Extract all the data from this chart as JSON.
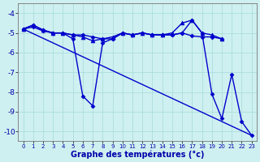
{
  "background_color": "#cff0f0",
  "grid_color": "#aadddd",
  "line_color": "#0000cc",
  "xlabel": "Graphe des températures (°c)",
  "ylim": [
    -10.5,
    -3.5
  ],
  "xlim": [
    -0.5,
    23.5
  ],
  "yticks": [
    -10,
    -9,
    -8,
    -7,
    -6,
    -5,
    -4
  ],
  "xticks": [
    0,
    1,
    2,
    3,
    4,
    5,
    6,
    7,
    8,
    9,
    10,
    11,
    12,
    13,
    14,
    15,
    16,
    17,
    18,
    19,
    20,
    21,
    22,
    23
  ],
  "series": [
    {
      "x": [
        0,
        1,
        2,
        3,
        4,
        5,
        6,
        7,
        8,
        9,
        10,
        11,
        12,
        13,
        14,
        15,
        16,
        17,
        18,
        19,
        20
      ],
      "y": [
        -4.8,
        -4.7,
        -4.9,
        -5.0,
        -5.0,
        -5.1,
        -5.1,
        -5.2,
        -5.3,
        -5.3,
        -5.0,
        -5.1,
        -5.0,
        -5.1,
        -5.1,
        -5.1,
        -5.0,
        -5.15,
        -5.2,
        -5.2,
        -5.3
      ],
      "marker": "D",
      "markersize": 2.5,
      "linewidth": 1.0
    },
    {
      "x": [
        0,
        1,
        2,
        3,
        4,
        5,
        6,
        7,
        8,
        9,
        10,
        11,
        12,
        13,
        14,
        15,
        16,
        17,
        18,
        19,
        20
      ],
      "y": [
        -4.8,
        -4.6,
        -4.85,
        -5.0,
        -5.0,
        -5.1,
        -5.2,
        -5.4,
        -5.3,
        -5.2,
        -5.0,
        -5.1,
        -5.0,
        -5.1,
        -5.1,
        -5.0,
        -4.5,
        -4.35,
        -5.0,
        -5.1,
        -5.3
      ],
      "marker": "^",
      "markersize": 3.5,
      "linewidth": 1.0
    },
    {
      "x": [
        0,
        1,
        2,
        3,
        4,
        5,
        6,
        7,
        8,
        9,
        10,
        11,
        12,
        13,
        14,
        15,
        16,
        17,
        18,
        19,
        20,
        21,
        22,
        23
      ],
      "y": [
        -4.8,
        -4.6,
        -4.85,
        -5.0,
        -5.0,
        -5.3,
        -8.2,
        -8.7,
        -5.5,
        -5.3,
        -5.0,
        -5.1,
        -5.0,
        -5.1,
        -5.1,
        -5.1,
        -5.0,
        -4.35,
        -5.0,
        -8.1,
        -9.35,
        -7.1,
        -9.5,
        -10.2
      ],
      "marker": "D",
      "markersize": 2.5,
      "linewidth": 1.0
    },
    {
      "x": [
        0,
        23
      ],
      "y": [
        -4.8,
        -10.2
      ],
      "marker": null,
      "markersize": 0,
      "linewidth": 1.0
    }
  ]
}
